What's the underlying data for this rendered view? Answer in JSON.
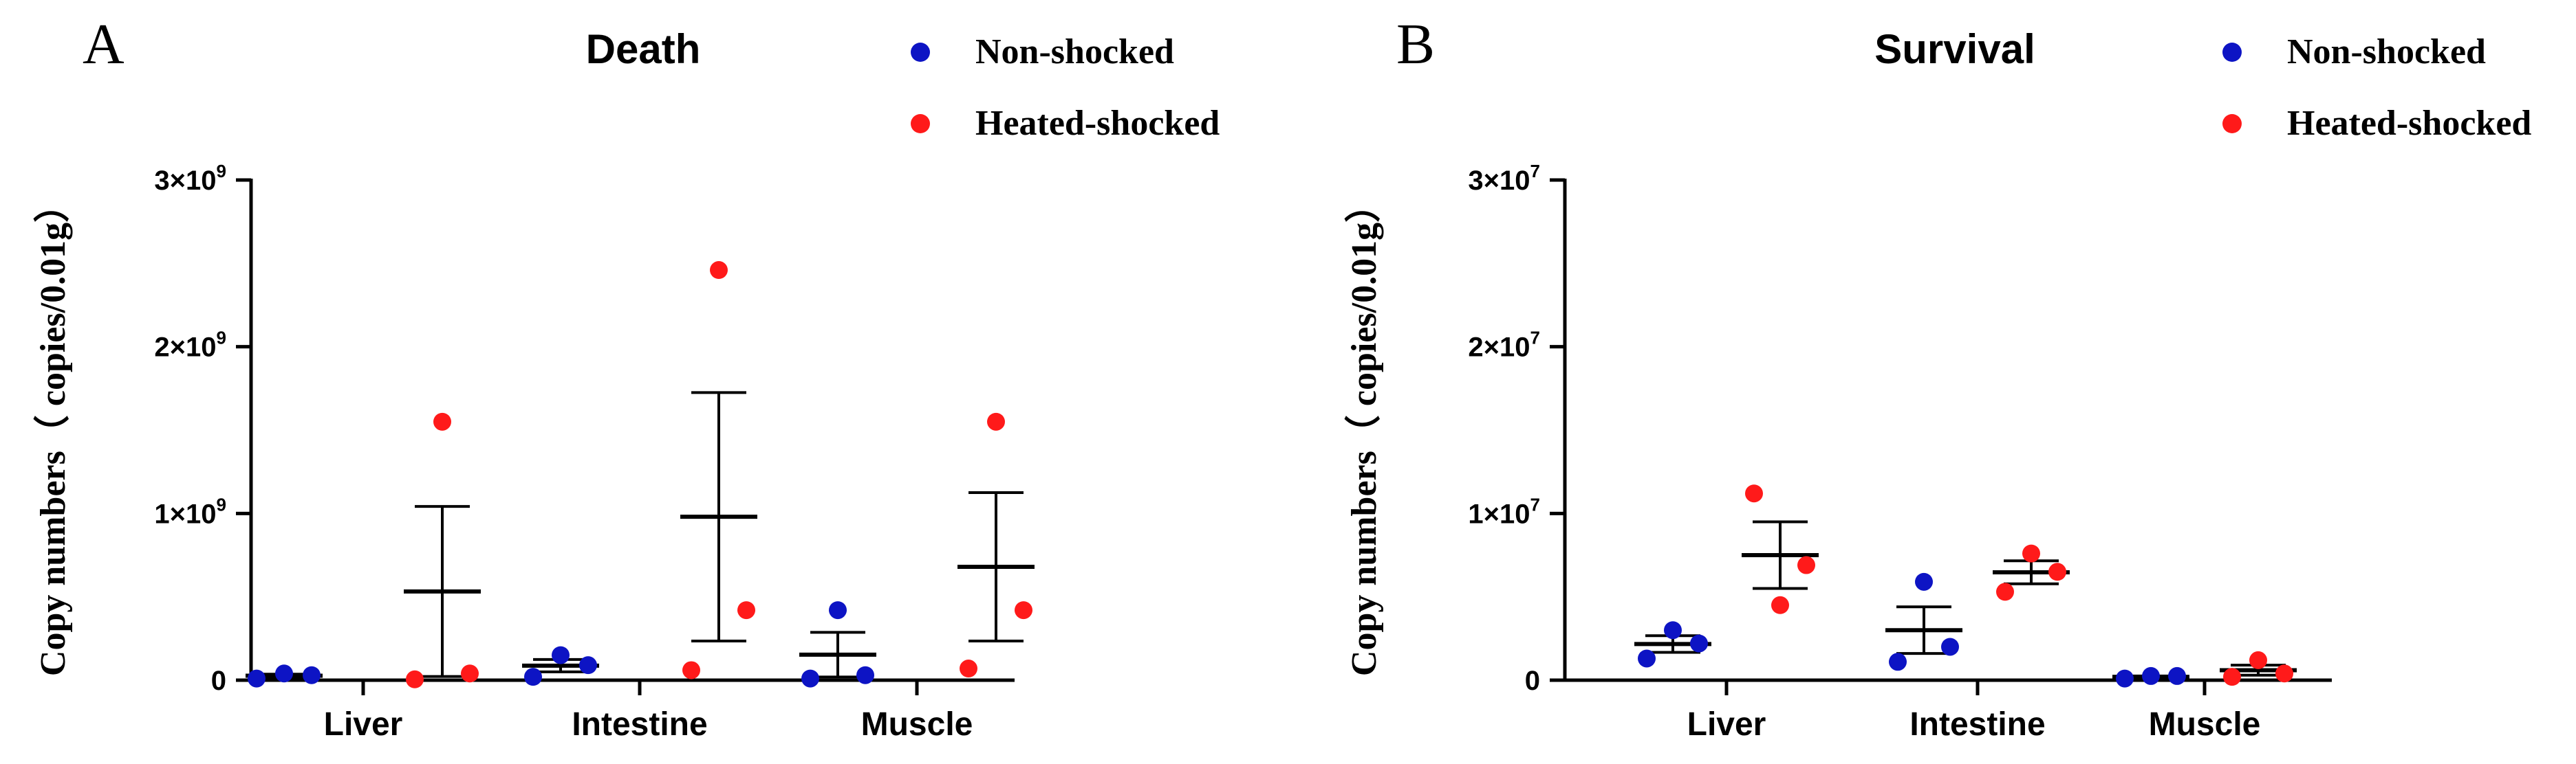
{
  "legend": {
    "series": [
      {
        "name": "Non-shocked",
        "color": "#0d14c4"
      },
      {
        "name": "Heated-shocked",
        "color": "#ff1a1a"
      }
    ]
  },
  "chart_data": [
    {
      "type": "scatter",
      "panel": "A",
      "title": "Death",
      "ylabel": "Copy numbers（ copies/0.01g）",
      "xlabel": "",
      "ylim": [
        0,
        3000000000
      ],
      "yticks": [
        {
          "value": 0,
          "mant": "0",
          "exp": ""
        },
        {
          "value": 1000000000,
          "mant": "1×10",
          "exp": "9"
        },
        {
          "value": 2000000000,
          "mant": "2×10",
          "exp": "9"
        },
        {
          "value": 3000000000,
          "mant": "3×10",
          "exp": "9"
        }
      ],
      "categories": [
        "Liver",
        "Intestine",
        "Muscle"
      ],
      "series": [
        {
          "name": "Non-shocked",
          "color": "#0d14c4",
          "points": [
            [
              10000000,
              40000000,
              30000000
            ],
            [
              20000000,
              150000000,
              90000000
            ],
            [
              10000000,
              420000000,
              30000000
            ]
          ],
          "mean": [
            27000000,
            87000000,
            153000000
          ],
          "sem": [
            9000000,
            37000000,
            134000000
          ]
        },
        {
          "name": "Heated-shocked",
          "color": "#ff1a1a",
          "points": [
            [
              5000000,
              1550000000,
              40000000
            ],
            [
              60000000,
              2460000000,
              420000000
            ],
            [
              70000000,
              1550000000,
              420000000
            ]
          ],
          "mean": [
            532000000,
            980000000,
            680000000
          ],
          "sem": [
            510000000,
            745000000,
            445000000
          ]
        }
      ]
    },
    {
      "type": "scatter",
      "panel": "B",
      "title": "Survival",
      "ylabel": "Copy numbers（ copies/0.01g）",
      "xlabel": "",
      "ylim": [
        0,
        30000000
      ],
      "yticks": [
        {
          "value": 0,
          "mant": "0",
          "exp": ""
        },
        {
          "value": 10000000,
          "mant": "1×10",
          "exp": "7"
        },
        {
          "value": 20000000,
          "mant": "2×10",
          "exp": "7"
        },
        {
          "value": 30000000,
          "mant": "3×10",
          "exp": "7"
        }
      ],
      "categories": [
        "Liver",
        "Intestine",
        "Muscle"
      ],
      "series": [
        {
          "name": "Non-shocked",
          "color": "#0d14c4",
          "points": [
            [
              1300000,
              3000000,
              2200000
            ],
            [
              1100000,
              5900000,
              2000000
            ],
            [
              100000,
              250000,
              250000
            ]
          ],
          "mean": [
            2170000,
            3000000,
            200000
          ],
          "sem": [
            500000,
            1400000,
            50000
          ]
        },
        {
          "name": "Heated-shocked",
          "color": "#ff1a1a",
          "points": [
            [
              11200000,
              4500000,
              6900000
            ],
            [
              5300000,
              7600000,
              6500000
            ],
            [
              200000,
              1200000,
              400000
            ]
          ],
          "mean": [
            7500000,
            6470000,
            600000
          ],
          "sem": [
            2000000,
            690000,
            300000
          ]
        }
      ]
    }
  ]
}
